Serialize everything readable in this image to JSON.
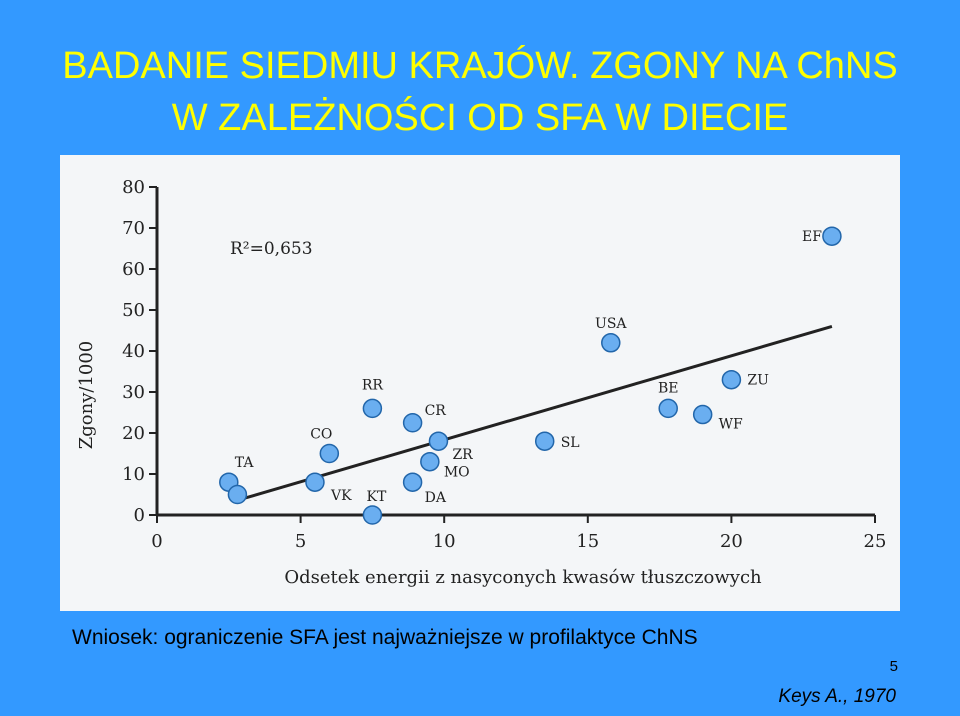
{
  "slide": {
    "title_line1": "BADANIE SIEDMIU KRAJÓW. ZGONY NA ChNS",
    "title_line2": "W ZALEŻNOŚCI OD SFA W DIECIE",
    "conclusion": "Wniosek: ograniczenie SFA jest najważniejsze w profilaktyce ChNS",
    "slide_number": "5",
    "citation": "Keys A., 1970",
    "title_color": "#ffff00",
    "background_color": "#3399ff"
  },
  "chart_data": {
    "type": "scatter",
    "xlabel": "Odsetek energii z nasyconych kwasów tłuszczowych",
    "ylabel": "Zgony/1000",
    "xlim": [
      0,
      25
    ],
    "ylim": [
      0,
      80
    ],
    "xticks": [
      "0",
      "5",
      "10",
      "15",
      "20",
      "25"
    ],
    "yticks": [
      "0",
      "10",
      "20",
      "30",
      "40",
      "50",
      "60",
      "70",
      "80"
    ],
    "annotation": "R²=0,653",
    "grid": false,
    "point_color": "#6aaef0",
    "points": [
      {
        "label": "TA",
        "x": 2.5,
        "y": 8
      },
      {
        "label": "",
        "x": 2.8,
        "y": 5
      },
      {
        "label": "VK",
        "x": 5.5,
        "y": 8
      },
      {
        "label": "CO",
        "x": 6.0,
        "y": 15
      },
      {
        "label": "KT",
        "x": 7.5,
        "y": 0
      },
      {
        "label": "RR",
        "x": 7.5,
        "y": 26
      },
      {
        "label": "CR",
        "x": 8.9,
        "y": 22.5
      },
      {
        "label": "DA",
        "x": 8.9,
        "y": 8
      },
      {
        "label": "MO",
        "x": 9.5,
        "y": 13
      },
      {
        "label": "ZR",
        "x": 9.8,
        "y": 18
      },
      {
        "label": "SL",
        "x": 13.5,
        "y": 18
      },
      {
        "label": "USA",
        "x": 15.8,
        "y": 42
      },
      {
        "label": "BE",
        "x": 17.8,
        "y": 26
      },
      {
        "label": "WF",
        "x": 19.0,
        "y": 24.5
      },
      {
        "label": "ZU",
        "x": 20.0,
        "y": 33
      },
      {
        "label": "EF",
        "x": 23.5,
        "y": 68
      }
    ],
    "trendline": {
      "x": [
        3,
        23.5
      ],
      "y": [
        4,
        46
      ]
    }
  }
}
